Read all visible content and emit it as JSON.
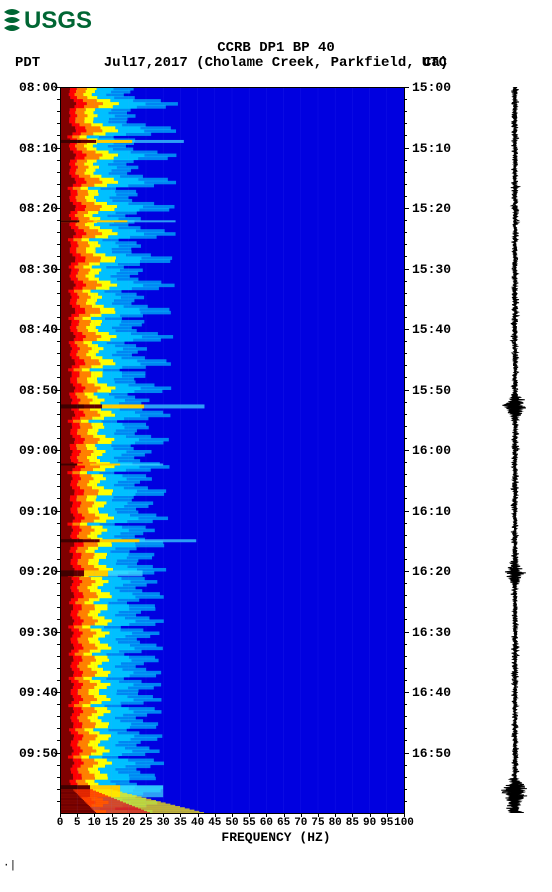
{
  "logo_text": "USGS",
  "title": "CCRB DP1 BP 40",
  "subtitle": "Jul17,2017  (Cholame Creek, Parkfield, Ca)",
  "left_tz": "PDT",
  "right_tz": "UTC",
  "x_axis_label": "FREQUENCY (HZ)",
  "colors": {
    "bg": "#ffffff",
    "spectro_low": "#0000e0",
    "spectro_mid": "#00c0ff",
    "spectro_high": "#ffff00",
    "spectro_hot": "#ff0000",
    "spectro_dark": "#800000",
    "waveform": "#000000",
    "logo": "#006633"
  },
  "plot": {
    "type": "spectrogram",
    "x_min": 0,
    "x_max": 100,
    "x_ticks": [
      0,
      5,
      10,
      15,
      20,
      25,
      30,
      35,
      40,
      45,
      50,
      55,
      60,
      65,
      70,
      75,
      80,
      85,
      90,
      95,
      100
    ],
    "y_left_labels": [
      "08:00",
      "08:10",
      "08:20",
      "08:30",
      "08:40",
      "08:50",
      "09:00",
      "09:10",
      "09:20",
      "09:30",
      "09:40",
      "09:50"
    ],
    "y_right_labels": [
      "15:00",
      "15:10",
      "15:20",
      "15:30",
      "15:40",
      "15:50",
      "16:00",
      "16:10",
      "16:20",
      "16:30",
      "16:40",
      "16:50"
    ],
    "intensity_bands": [
      {
        "freq_to": 3,
        "color": "#800000"
      },
      {
        "freq_to": 5,
        "color": "#ff0000"
      },
      {
        "freq_to": 8,
        "color": "#ff8000"
      },
      {
        "freq_to": 11,
        "color": "#ffff00"
      },
      {
        "freq_to": 16,
        "color": "#00c0ff"
      },
      {
        "freq_to": 100,
        "color": "#0000e0"
      }
    ],
    "events": [
      {
        "time_frac": 0.075,
        "width": 3,
        "extent": 30,
        "hot": true
      },
      {
        "time_frac": 0.185,
        "width": 2,
        "extent": 28,
        "hot": false
      },
      {
        "time_frac": 0.44,
        "width": 4,
        "extent": 35,
        "hot": true
      },
      {
        "time_frac": 0.52,
        "width": 2,
        "extent": 25,
        "hot": false
      },
      {
        "time_frac": 0.625,
        "width": 3,
        "extent": 33,
        "hot": true
      },
      {
        "time_frac": 0.67,
        "width": 6,
        "extent": 20,
        "hot": true
      },
      {
        "time_frac": 0.97,
        "width": 12,
        "extent": 25,
        "hot": true
      }
    ],
    "grid_vlines": [
      5,
      10,
      15,
      20,
      25,
      30,
      35,
      40,
      45,
      50,
      55,
      60,
      65,
      70,
      75,
      80,
      85,
      90,
      95
    ]
  },
  "waveform": {
    "type": "seismogram",
    "baseline_amp": 3,
    "events": [
      {
        "time_frac": 0.44,
        "amp": 12
      },
      {
        "time_frac": 0.67,
        "amp": 8
      },
      {
        "time_frac": 0.97,
        "amp": 10
      }
    ]
  },
  "footer_mark": "·|"
}
